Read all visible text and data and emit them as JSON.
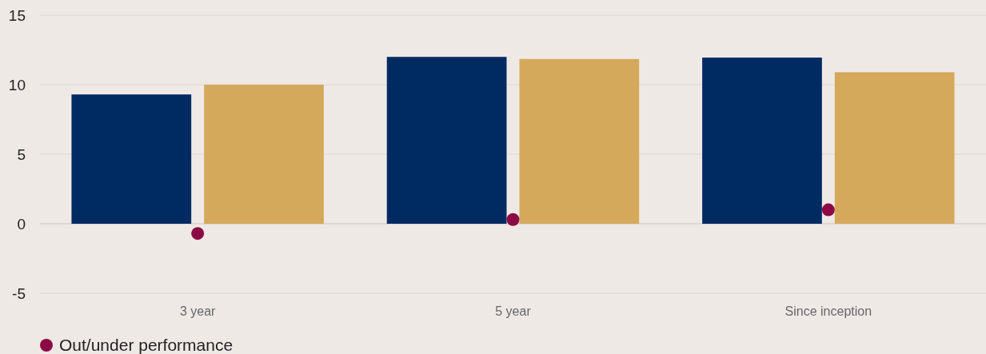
{
  "chart_data": {
    "type": "bar",
    "categories": [
      "3 year",
      "5 year",
      "Since inception"
    ],
    "series": [
      {
        "color": "#002b62",
        "values": [
          9.3,
          12.0,
          11.95
        ]
      },
      {
        "color": "#d5a95b",
        "values": [
          10.0,
          11.85,
          10.9
        ]
      },
      {
        "name": "Out/under performance",
        "type": "scatter",
        "color": "#8c0a44",
        "x": [
          "3 year",
          "5 year",
          "Since inception"
        ],
        "values": [
          -0.7,
          0.3,
          1.0
        ]
      }
    ],
    "ylim": [
      -5,
      15
    ],
    "yticks": [
      -5,
      0,
      5,
      10,
      15
    ],
    "grid": "y",
    "legend": "bottom",
    "marker": "circle"
  }
}
